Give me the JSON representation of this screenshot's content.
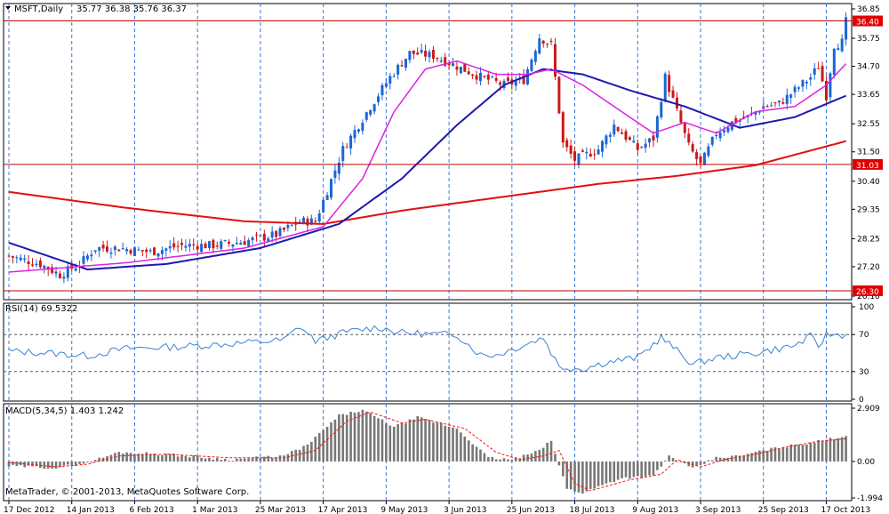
{
  "chart_data": [
    {
      "type": "candlestick",
      "title": "MSFT,Daily",
      "ohlc_text": "35.77 36.38 35.76 36.37",
      "y_ticks": [
        "36.85",
        "35.75",
        "34.70",
        "33.65",
        "32.55",
        "31.50",
        "30.40",
        "29.35",
        "28.25",
        "27.20",
        "26.10"
      ],
      "ylim": [
        26.1,
        36.85
      ],
      "x_labels": [
        "17 Dec 2012",
        "14 Jan 2013",
        "6 Feb 2013",
        "1 Mar 2013",
        "25 Mar 2013",
        "17 Apr 2013",
        "9 May 2013",
        "3 Jun 2013",
        "25 Jun 2013",
        "18 Jul 2013",
        "9 Aug 2013",
        "3 Sep 2013",
        "25 Sep 2013",
        "17 Oct 2013"
      ],
      "bars_per_label": 16,
      "total_bars": 214,
      "up_color": "#1a66d6",
      "down_color": "#cc1818",
      "close_anchors": [
        [
          0,
          27.6
        ],
        [
          8,
          27.3
        ],
        [
          13,
          26.9
        ],
        [
          18,
          27.3
        ],
        [
          22,
          27.9
        ],
        [
          28,
          27.9
        ],
        [
          36,
          27.75
        ],
        [
          44,
          28.0
        ],
        [
          52,
          28.0
        ],
        [
          60,
          28.15
        ],
        [
          68,
          28.4
        ],
        [
          74,
          28.9
        ],
        [
          78,
          28.9
        ],
        [
          85,
          31.6
        ],
        [
          92,
          33.2
        ],
        [
          97,
          34.3
        ],
        [
          102,
          35.2
        ],
        [
          108,
          35.1
        ],
        [
          114,
          34.7
        ],
        [
          120,
          34.3
        ],
        [
          126,
          34.0
        ],
        [
          131,
          34.2
        ],
        [
          135,
          35.8
        ],
        [
          138,
          35.5
        ],
        [
          141,
          31.8
        ],
        [
          144,
          31.2
        ],
        [
          150,
          31.6
        ],
        [
          154,
          32.5
        ],
        [
          160,
          31.6
        ],
        [
          164,
          32.0
        ],
        [
          167,
          34.3
        ],
        [
          170,
          33.0
        ],
        [
          173,
          31.7
        ],
        [
          176,
          31.0
        ],
        [
          180,
          32.2
        ],
        [
          184,
          32.6
        ],
        [
          188,
          32.8
        ],
        [
          192,
          33.2
        ],
        [
          196,
          33.3
        ],
        [
          200,
          33.8
        ],
        [
          204,
          34.3
        ],
        [
          206,
          34.7
        ],
        [
          208,
          33.6
        ],
        [
          210,
          35.5
        ],
        [
          212,
          35.6
        ],
        [
          213,
          36.37
        ]
      ],
      "ma_fast": {
        "color": "#e020e0",
        "points": [
          [
            0,
            27.0
          ],
          [
            30,
            27.35
          ],
          [
            60,
            27.9
          ],
          [
            80,
            28.7
          ],
          [
            90,
            30.5
          ],
          [
            98,
            33.0
          ],
          [
            106,
            34.6
          ],
          [
            114,
            34.9
          ],
          [
            124,
            34.4
          ],
          [
            132,
            34.4
          ],
          [
            138,
            34.6
          ],
          [
            146,
            34.0
          ],
          [
            154,
            33.2
          ],
          [
            164,
            32.2
          ],
          [
            172,
            32.6
          ],
          [
            180,
            32.2
          ],
          [
            190,
            33.0
          ],
          [
            200,
            33.2
          ],
          [
            208,
            34.0
          ],
          [
            213,
            34.8
          ]
        ]
      },
      "ma_mid": {
        "color": "#1a1ab0",
        "points": [
          [
            0,
            28.1
          ],
          [
            20,
            27.1
          ],
          [
            40,
            27.3
          ],
          [
            64,
            27.9
          ],
          [
            84,
            28.8
          ],
          [
            100,
            30.5
          ],
          [
            114,
            32.5
          ],
          [
            126,
            34.0
          ],
          [
            136,
            34.6
          ],
          [
            146,
            34.4
          ],
          [
            158,
            33.8
          ],
          [
            172,
            33.2
          ],
          [
            186,
            32.4
          ],
          [
            200,
            32.8
          ],
          [
            213,
            33.6
          ]
        ]
      },
      "ma_slow": {
        "color": "#e01010",
        "points": [
          [
            0,
            30.0
          ],
          [
            30,
            29.4
          ],
          [
            60,
            28.9
          ],
          [
            80,
            28.8
          ],
          [
            100,
            29.3
          ],
          [
            130,
            29.9
          ],
          [
            150,
            30.3
          ],
          [
            170,
            30.6
          ],
          [
            190,
            31.0
          ],
          [
            213,
            31.9
          ]
        ]
      },
      "hlines": [
        {
          "value": 36.4,
          "label": "36.40"
        },
        {
          "value": 31.03,
          "label": "31.03"
        },
        {
          "value": 26.3,
          "label": "26.30"
        }
      ]
    },
    {
      "type": "line",
      "title": "RSI(14) 69.5322",
      "y_ticks": [
        "100",
        "70",
        "30",
        "0"
      ],
      "ylim": [
        0,
        100
      ],
      "color": "#3c82d2",
      "levels": [
        70,
        30
      ],
      "points": [
        [
          0,
          52
        ],
        [
          10,
          50
        ],
        [
          20,
          47
        ],
        [
          30,
          55
        ],
        [
          44,
          57
        ],
        [
          56,
          60
        ],
        [
          70,
          64
        ],
        [
          74,
          79
        ],
        [
          78,
          63
        ],
        [
          86,
          73
        ],
        [
          94,
          78
        ],
        [
          100,
          72
        ],
        [
          110,
          70
        ],
        [
          114,
          70
        ],
        [
          120,
          48
        ],
        [
          124,
          48
        ],
        [
          130,
          57
        ],
        [
          136,
          67
        ],
        [
          140,
          35
        ],
        [
          146,
          33
        ],
        [
          152,
          40
        ],
        [
          160,
          45
        ],
        [
          166,
          67
        ],
        [
          174,
          38
        ],
        [
          180,
          45
        ],
        [
          190,
          50
        ],
        [
          200,
          58
        ],
        [
          204,
          68
        ],
        [
          206,
          57
        ],
        [
          208,
          70
        ],
        [
          213,
          69.5
        ]
      ]
    },
    {
      "type": "bar",
      "title": "MACD(5,34,5) 1.403 1.242",
      "y_ticks": [
        "2.909",
        "0.00",
        "-1.994"
      ],
      "ylim": [
        -1.994,
        2.909
      ],
      "bar_color": "#777777",
      "signal_color": "#ff1010",
      "hist_anchors": [
        [
          0,
          -0.25
        ],
        [
          12,
          -0.35
        ],
        [
          20,
          -0.05
        ],
        [
          28,
          0.5
        ],
        [
          40,
          0.4
        ],
        [
          56,
          0.1
        ],
        [
          70,
          0.3
        ],
        [
          76,
          0.9
        ],
        [
          84,
          2.5
        ],
        [
          90,
          2.8
        ],
        [
          98,
          1.9
        ],
        [
          104,
          2.4
        ],
        [
          114,
          1.8
        ],
        [
          122,
          0.2
        ],
        [
          128,
          0.1
        ],
        [
          134,
          0.5
        ],
        [
          138,
          1.1
        ],
        [
          142,
          -1.5
        ],
        [
          146,
          -1.7
        ],
        [
          156,
          -0.9
        ],
        [
          164,
          -0.8
        ],
        [
          168,
          0.3
        ],
        [
          174,
          -0.4
        ],
        [
          180,
          0.2
        ],
        [
          186,
          0.3
        ],
        [
          192,
          0.6
        ],
        [
          200,
          0.9
        ],
        [
          206,
          1.1
        ],
        [
          213,
          1.4
        ]
      ],
      "signal_anchors": [
        [
          0,
          -0.05
        ],
        [
          12,
          -0.3
        ],
        [
          20,
          -0.15
        ],
        [
          28,
          0.3
        ],
        [
          40,
          0.4
        ],
        [
          56,
          0.2
        ],
        [
          70,
          0.2
        ],
        [
          78,
          0.6
        ],
        [
          86,
          2.2
        ],
        [
          92,
          2.7
        ],
        [
          100,
          2.1
        ],
        [
          106,
          2.3
        ],
        [
          116,
          1.8
        ],
        [
          124,
          0.5
        ],
        [
          130,
          0.1
        ],
        [
          136,
          0.3
        ],
        [
          140,
          0.6
        ],
        [
          144,
          -1.2
        ],
        [
          148,
          -1.6
        ],
        [
          158,
          -1.0
        ],
        [
          166,
          -0.7
        ],
        [
          170,
          0.1
        ],
        [
          176,
          -0.3
        ],
        [
          182,
          0.1
        ],
        [
          190,
          0.4
        ],
        [
          198,
          0.8
        ],
        [
          206,
          1.1
        ],
        [
          213,
          1.24
        ]
      ]
    }
  ],
  "watermark": "MetaTrader, © 2001-2013, MetaQuotes Software Corp."
}
